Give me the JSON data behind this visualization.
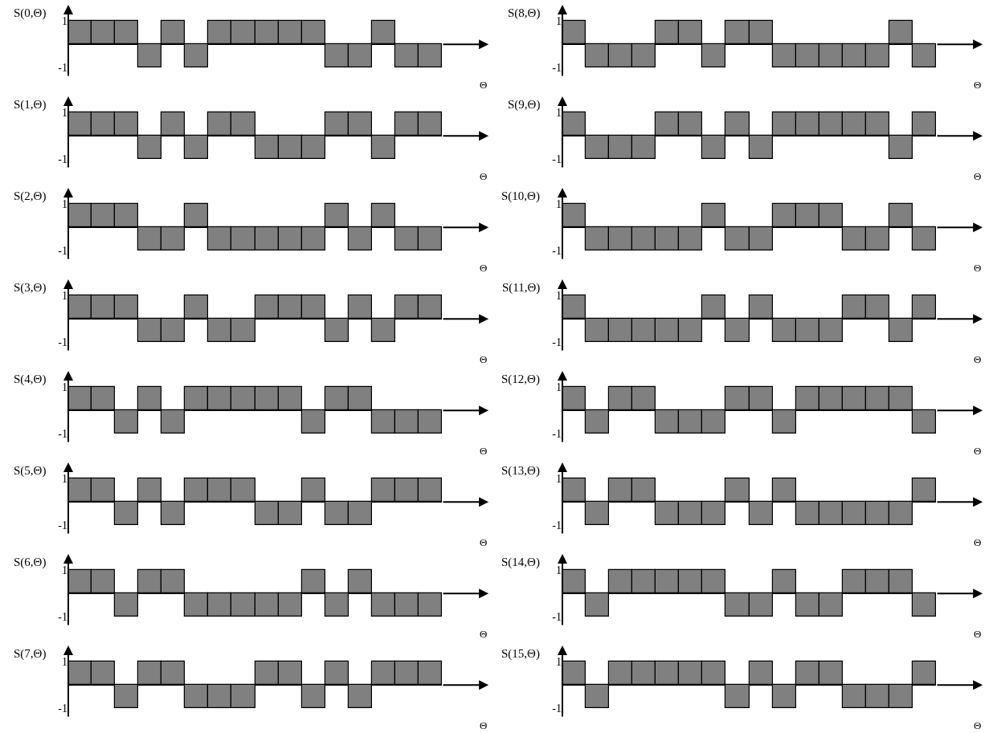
{
  "chart_data": [
    {
      "type": "bar",
      "ylabel": "S(0,Θ)",
      "xlabel": "Θ",
      "categories": [
        null,
        null,
        null,
        null,
        null,
        null,
        null,
        null,
        null,
        null,
        null,
        null,
        null,
        null,
        null,
        null
      ],
      "values": [
        1,
        1,
        1,
        -1,
        1,
        -1,
        1,
        1,
        1,
        1,
        1,
        -1,
        -1,
        1,
        -1,
        -1
      ],
      "color": "#808080",
      "ylim": [
        -1.4,
        1.7
      ],
      "yticks": [
        -1,
        1
      ],
      "tick_labels": "y",
      "grid": false
    },
    {
      "type": "bar",
      "ylabel": "S(8,Θ)",
      "xlabel": "Θ",
      "categories": [
        null,
        null,
        null,
        null,
        null,
        null,
        null,
        null,
        null,
        null,
        null,
        null,
        null,
        null,
        null,
        null
      ],
      "values": [
        1,
        -1,
        -1,
        -1,
        1,
        1,
        -1,
        1,
        1,
        -1,
        -1,
        -1,
        -1,
        -1,
        1,
        -1
      ],
      "color": "#808080",
      "ylim": [
        -1.4,
        1.7
      ],
      "yticks": [
        -1,
        1
      ],
      "tick_labels": "y",
      "grid": false
    },
    {
      "type": "bar",
      "ylabel": "S(1,Θ)",
      "xlabel": "Θ",
      "categories": [
        null,
        null,
        null,
        null,
        null,
        null,
        null,
        null,
        null,
        null,
        null,
        null,
        null,
        null,
        null,
        null
      ],
      "values": [
        1,
        1,
        1,
        -1,
        1,
        -1,
        1,
        1,
        -1,
        -1,
        -1,
        1,
        1,
        -1,
        1,
        1
      ],
      "color": "#808080",
      "ylim": [
        -1.4,
        1.7
      ],
      "yticks": [
        -1,
        1
      ],
      "tick_labels": "y",
      "grid": false
    },
    {
      "type": "bar",
      "ylabel": "S(9,Θ)",
      "xlabel": "Θ",
      "categories": [
        null,
        null,
        null,
        null,
        null,
        null,
        null,
        null,
        null,
        null,
        null,
        null,
        null,
        null,
        null,
        null
      ],
      "values": [
        1,
        -1,
        -1,
        -1,
        1,
        1,
        -1,
        1,
        -1,
        1,
        1,
        1,
        1,
        1,
        -1,
        1
      ],
      "color": "#808080",
      "ylim": [
        -1.4,
        1.7
      ],
      "yticks": [
        -1,
        1
      ],
      "tick_labels": "y",
      "grid": false
    },
    {
      "type": "bar",
      "ylabel": "S(2,Θ)",
      "xlabel": "Θ",
      "categories": [
        null,
        null,
        null,
        null,
        null,
        null,
        null,
        null,
        null,
        null,
        null,
        null,
        null,
        null,
        null,
        null
      ],
      "values": [
        1,
        1,
        1,
        -1,
        -1,
        1,
        -1,
        -1,
        -1,
        -1,
        -1,
        1,
        -1,
        1,
        -1,
        -1
      ],
      "color": "#808080",
      "ylim": [
        -1.4,
        1.7
      ],
      "yticks": [
        -1,
        1
      ],
      "tick_labels": "y",
      "grid": false
    },
    {
      "type": "bar",
      "ylabel": "S(10,Θ)",
      "xlabel": "Θ",
      "categories": [
        null,
        null,
        null,
        null,
        null,
        null,
        null,
        null,
        null,
        null,
        null,
        null,
        null,
        null,
        null,
        null
      ],
      "values": [
        1,
        -1,
        -1,
        -1,
        -1,
        -1,
        1,
        -1,
        -1,
        1,
        1,
        1,
        -1,
        -1,
        1,
        -1
      ],
      "color": "#808080",
      "ylim": [
        -1.4,
        1.7
      ],
      "yticks": [
        -1,
        1
      ],
      "tick_labels": "y",
      "grid": false
    },
    {
      "type": "bar",
      "ylabel": "S(3,Θ)",
      "xlabel": "Θ",
      "categories": [
        null,
        null,
        null,
        null,
        null,
        null,
        null,
        null,
        null,
        null,
        null,
        null,
        null,
        null,
        null,
        null
      ],
      "values": [
        1,
        1,
        1,
        -1,
        -1,
        1,
        -1,
        -1,
        1,
        1,
        1,
        -1,
        1,
        -1,
        1,
        1
      ],
      "color": "#808080",
      "ylim": [
        -1.4,
        1.7
      ],
      "yticks": [
        -1,
        1
      ],
      "tick_labels": "y",
      "grid": false
    },
    {
      "type": "bar",
      "ylabel": "S(11,Θ)",
      "xlabel": "Θ",
      "categories": [
        null,
        null,
        null,
        null,
        null,
        null,
        null,
        null,
        null,
        null,
        null,
        null,
        null,
        null,
        null,
        null
      ],
      "values": [
        1,
        -1,
        -1,
        -1,
        -1,
        -1,
        1,
        -1,
        1,
        -1,
        -1,
        -1,
        1,
        1,
        -1,
        1
      ],
      "color": "#808080",
      "ylim": [
        -1.4,
        1.7
      ],
      "yticks": [
        -1,
        1
      ],
      "tick_labels": "y",
      "grid": false
    },
    {
      "type": "bar",
      "ylabel": "S(4,Θ)",
      "xlabel": "Θ",
      "categories": [
        null,
        null,
        null,
        null,
        null,
        null,
        null,
        null,
        null,
        null,
        null,
        null,
        null,
        null,
        null,
        null
      ],
      "values": [
        1,
        1,
        -1,
        1,
        -1,
        1,
        1,
        1,
        1,
        1,
        -1,
        1,
        1,
        -1,
        -1,
        -1
      ],
      "color": "#808080",
      "ylim": [
        -1.4,
        1.7
      ],
      "yticks": [
        -1,
        1
      ],
      "tick_labels": "y",
      "grid": false
    },
    {
      "type": "bar",
      "ylabel": "S(12,Θ)",
      "xlabel": "Θ",
      "categories": [
        null,
        null,
        null,
        null,
        null,
        null,
        null,
        null,
        null,
        null,
        null,
        null,
        null,
        null,
        null,
        null
      ],
      "values": [
        1,
        -1,
        1,
        1,
        -1,
        -1,
        -1,
        1,
        1,
        -1,
        1,
        1,
        1,
        1,
        1,
        -1
      ],
      "color": "#808080",
      "ylim": [
        -1.4,
        1.7
      ],
      "yticks": [
        -1,
        1
      ],
      "tick_labels": "y",
      "grid": false
    },
    {
      "type": "bar",
      "ylabel": "S(5,Θ)",
      "xlabel": "Θ",
      "categories": [
        null,
        null,
        null,
        null,
        null,
        null,
        null,
        null,
        null,
        null,
        null,
        null,
        null,
        null,
        null,
        null
      ],
      "values": [
        1,
        1,
        -1,
        1,
        -1,
        1,
        1,
        1,
        -1,
        -1,
        1,
        -1,
        -1,
        1,
        1,
        1
      ],
      "color": "#808080",
      "ylim": [
        -1.4,
        1.7
      ],
      "yticks": [
        -1,
        1
      ],
      "tick_labels": "y",
      "grid": false
    },
    {
      "type": "bar",
      "ylabel": "S(13,Θ)",
      "xlabel": "Θ",
      "categories": [
        null,
        null,
        null,
        null,
        null,
        null,
        null,
        null,
        null,
        null,
        null,
        null,
        null,
        null,
        null,
        null
      ],
      "values": [
        1,
        -1,
        1,
        1,
        -1,
        -1,
        -1,
        1,
        -1,
        1,
        -1,
        -1,
        -1,
        -1,
        -1,
        1
      ],
      "color": "#808080",
      "ylim": [
        -1.4,
        1.7
      ],
      "yticks": [
        -1,
        1
      ],
      "tick_labels": "y",
      "grid": false
    },
    {
      "type": "bar",
      "ylabel": "S(6,Θ)",
      "xlabel": "Θ",
      "categories": [
        null,
        null,
        null,
        null,
        null,
        null,
        null,
        null,
        null,
        null,
        null,
        null,
        null,
        null,
        null,
        null
      ],
      "values": [
        1,
        1,
        -1,
        1,
        1,
        -1,
        -1,
        -1,
        -1,
        -1,
        1,
        -1,
        1,
        -1,
        -1,
        -1
      ],
      "color": "#808080",
      "ylim": [
        -1.4,
        1.7
      ],
      "yticks": [
        -1,
        1
      ],
      "tick_labels": "y",
      "grid": false
    },
    {
      "type": "bar",
      "ylabel": "S(14,Θ)",
      "xlabel": "Θ",
      "categories": [
        null,
        null,
        null,
        null,
        null,
        null,
        null,
        null,
        null,
        null,
        null,
        null,
        null,
        null,
        null,
        null
      ],
      "values": [
        1,
        -1,
        1,
        1,
        1,
        1,
        1,
        -1,
        -1,
        1,
        -1,
        -1,
        1,
        1,
        1,
        -1
      ],
      "color": "#808080",
      "ylim": [
        -1.4,
        1.7
      ],
      "yticks": [
        -1,
        1
      ],
      "tick_labels": "y",
      "grid": false
    },
    {
      "type": "bar",
      "ylabel": "S(7,Θ)",
      "xlabel": "Θ",
      "categories": [
        null,
        null,
        null,
        null,
        null,
        null,
        null,
        null,
        null,
        null,
        null,
        null,
        null,
        null,
        null,
        null
      ],
      "values": [
        1,
        1,
        -1,
        1,
        1,
        -1,
        -1,
        -1,
        1,
        1,
        -1,
        1,
        -1,
        1,
        1,
        1
      ],
      "color": "#808080",
      "ylim": [
        -1.4,
        1.7
      ],
      "yticks": [
        -1,
        1
      ],
      "tick_labels": "y",
      "grid": false
    },
    {
      "type": "bar",
      "ylabel": "S(15,Θ)",
      "xlabel": "Θ",
      "categories": [
        null,
        null,
        null,
        null,
        null,
        null,
        null,
        null,
        null,
        null,
        null,
        null,
        null,
        null,
        null,
        null
      ],
      "values": [
        1,
        -1,
        1,
        1,
        1,
        1,
        1,
        -1,
        1,
        -1,
        1,
        1,
        -1,
        -1,
        -1,
        1
      ],
      "color": "#808080",
      "ylim": [
        -1.4,
        1.7
      ],
      "yticks": [
        -1,
        1
      ],
      "tick_labels": "y",
      "grid": false
    }
  ]
}
